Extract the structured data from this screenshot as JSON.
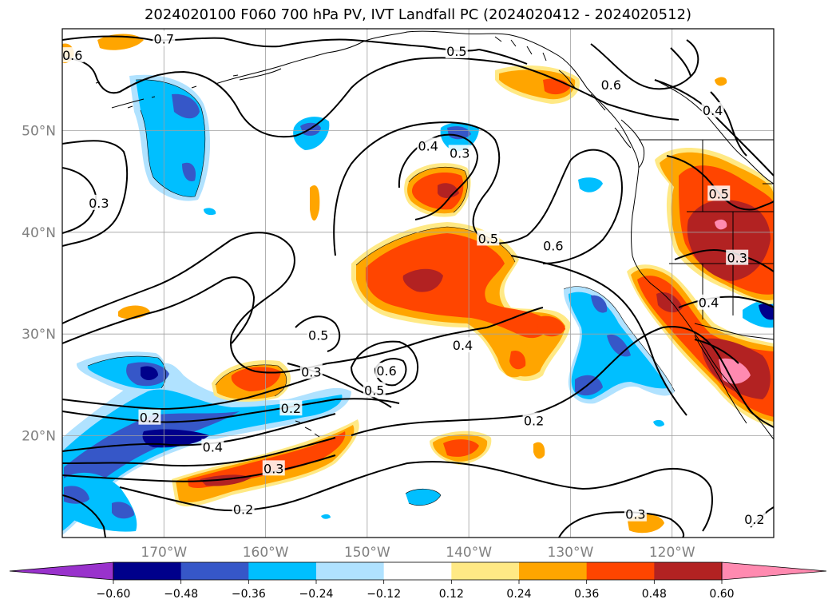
{
  "chart_data": {
    "type": "heatmap",
    "title": "2024020100 F060 700 hPa PV, IVT Landfall PC (2024020412 - 2024020512)",
    "x_axis": {
      "ticks": [
        -170,
        -160,
        -150,
        -140,
        -130,
        -120
      ],
      "tick_labels": [
        "170°W",
        "160°W",
        "150°W",
        "140°W",
        "130°W",
        "120°W"
      ],
      "range": [
        -180,
        -110
      ]
    },
    "y_axis": {
      "ticks": [
        20,
        30,
        40,
        50
      ],
      "tick_labels": [
        "20°N",
        "30°N",
        "40°N",
        "50°N"
      ],
      "range": [
        10,
        60
      ]
    },
    "grid": true,
    "colorbar": {
      "orientation": "horizontal",
      "placement": "bottom",
      "levels": [
        -0.6,
        -0.48,
        -0.36,
        -0.24,
        -0.12,
        0.12,
        0.24,
        0.36,
        0.48,
        0.6
      ],
      "tick_labels": [
        "−0.60",
        "−0.48",
        "−0.36",
        "−0.24",
        "−0.12",
        "0.12",
        "0.24",
        "0.36",
        "0.48",
        "0.60"
      ],
      "colors": [
        "#9932cc",
        "#00008b",
        "#3657c8",
        "#00bfff",
        "#b0e2ff",
        "#ffffff",
        "#ffe985",
        "#ffa500",
        "#ff4500",
        "#b22222",
        "#ff8ab0"
      ],
      "extend": "both"
    },
    "contour_labels": [
      {
        "text": "0.7",
        "lon": -170,
        "lat": 59
      },
      {
        "text": "0.6",
        "lon": -179,
        "lat": 57.4
      },
      {
        "text": "0.5",
        "lon": -141.2,
        "lat": 57.8
      },
      {
        "text": "0.6",
        "lon": -126,
        "lat": 54.5
      },
      {
        "text": "0.4",
        "lon": -116,
        "lat": 52
      },
      {
        "text": "0.4",
        "lon": -144,
        "lat": 48.5
      },
      {
        "text": "0.3",
        "lon": -140.9,
        "lat": 47.8
      },
      {
        "text": "0.3",
        "lon": -176.4,
        "lat": 42.9
      },
      {
        "text": "0.5",
        "lon": -115.4,
        "lat": 43.8
      },
      {
        "text": "0.5",
        "lon": -138.1,
        "lat": 39.4
      },
      {
        "text": "0.6",
        "lon": -131.7,
        "lat": 38.7
      },
      {
        "text": "0.3",
        "lon": -113.6,
        "lat": 37.5
      },
      {
        "text": "0.4",
        "lon": -116.4,
        "lat": 33.1
      },
      {
        "text": "0.5",
        "lon": -154.8,
        "lat": 29.9
      },
      {
        "text": "0.4",
        "lon": -140.6,
        "lat": 28.9
      },
      {
        "text": "0.6",
        "lon": -148.1,
        "lat": 26.4
      },
      {
        "text": "0.5",
        "lon": -149.3,
        "lat": 24.5
      },
      {
        "text": "0.3",
        "lon": -155.5,
        "lat": 26.3
      },
      {
        "text": "0.2",
        "lon": -157.5,
        "lat": 22.7
      },
      {
        "text": "0.2",
        "lon": -171.4,
        "lat": 21.8
      },
      {
        "text": "0.2",
        "lon": -133.6,
        "lat": 21.5
      },
      {
        "text": "0.4",
        "lon": -165.2,
        "lat": 18.9
      },
      {
        "text": "0.3",
        "lon": -159.2,
        "lat": 16.8
      },
      {
        "text": "0.2",
        "lon": -162.2,
        "lat": 12.8
      },
      {
        "text": "0.3",
        "lon": -123.6,
        "lat": 12.3
      },
      {
        "text": "0.2",
        "lon": -111.9,
        "lat": 11.8
      }
    ]
  }
}
